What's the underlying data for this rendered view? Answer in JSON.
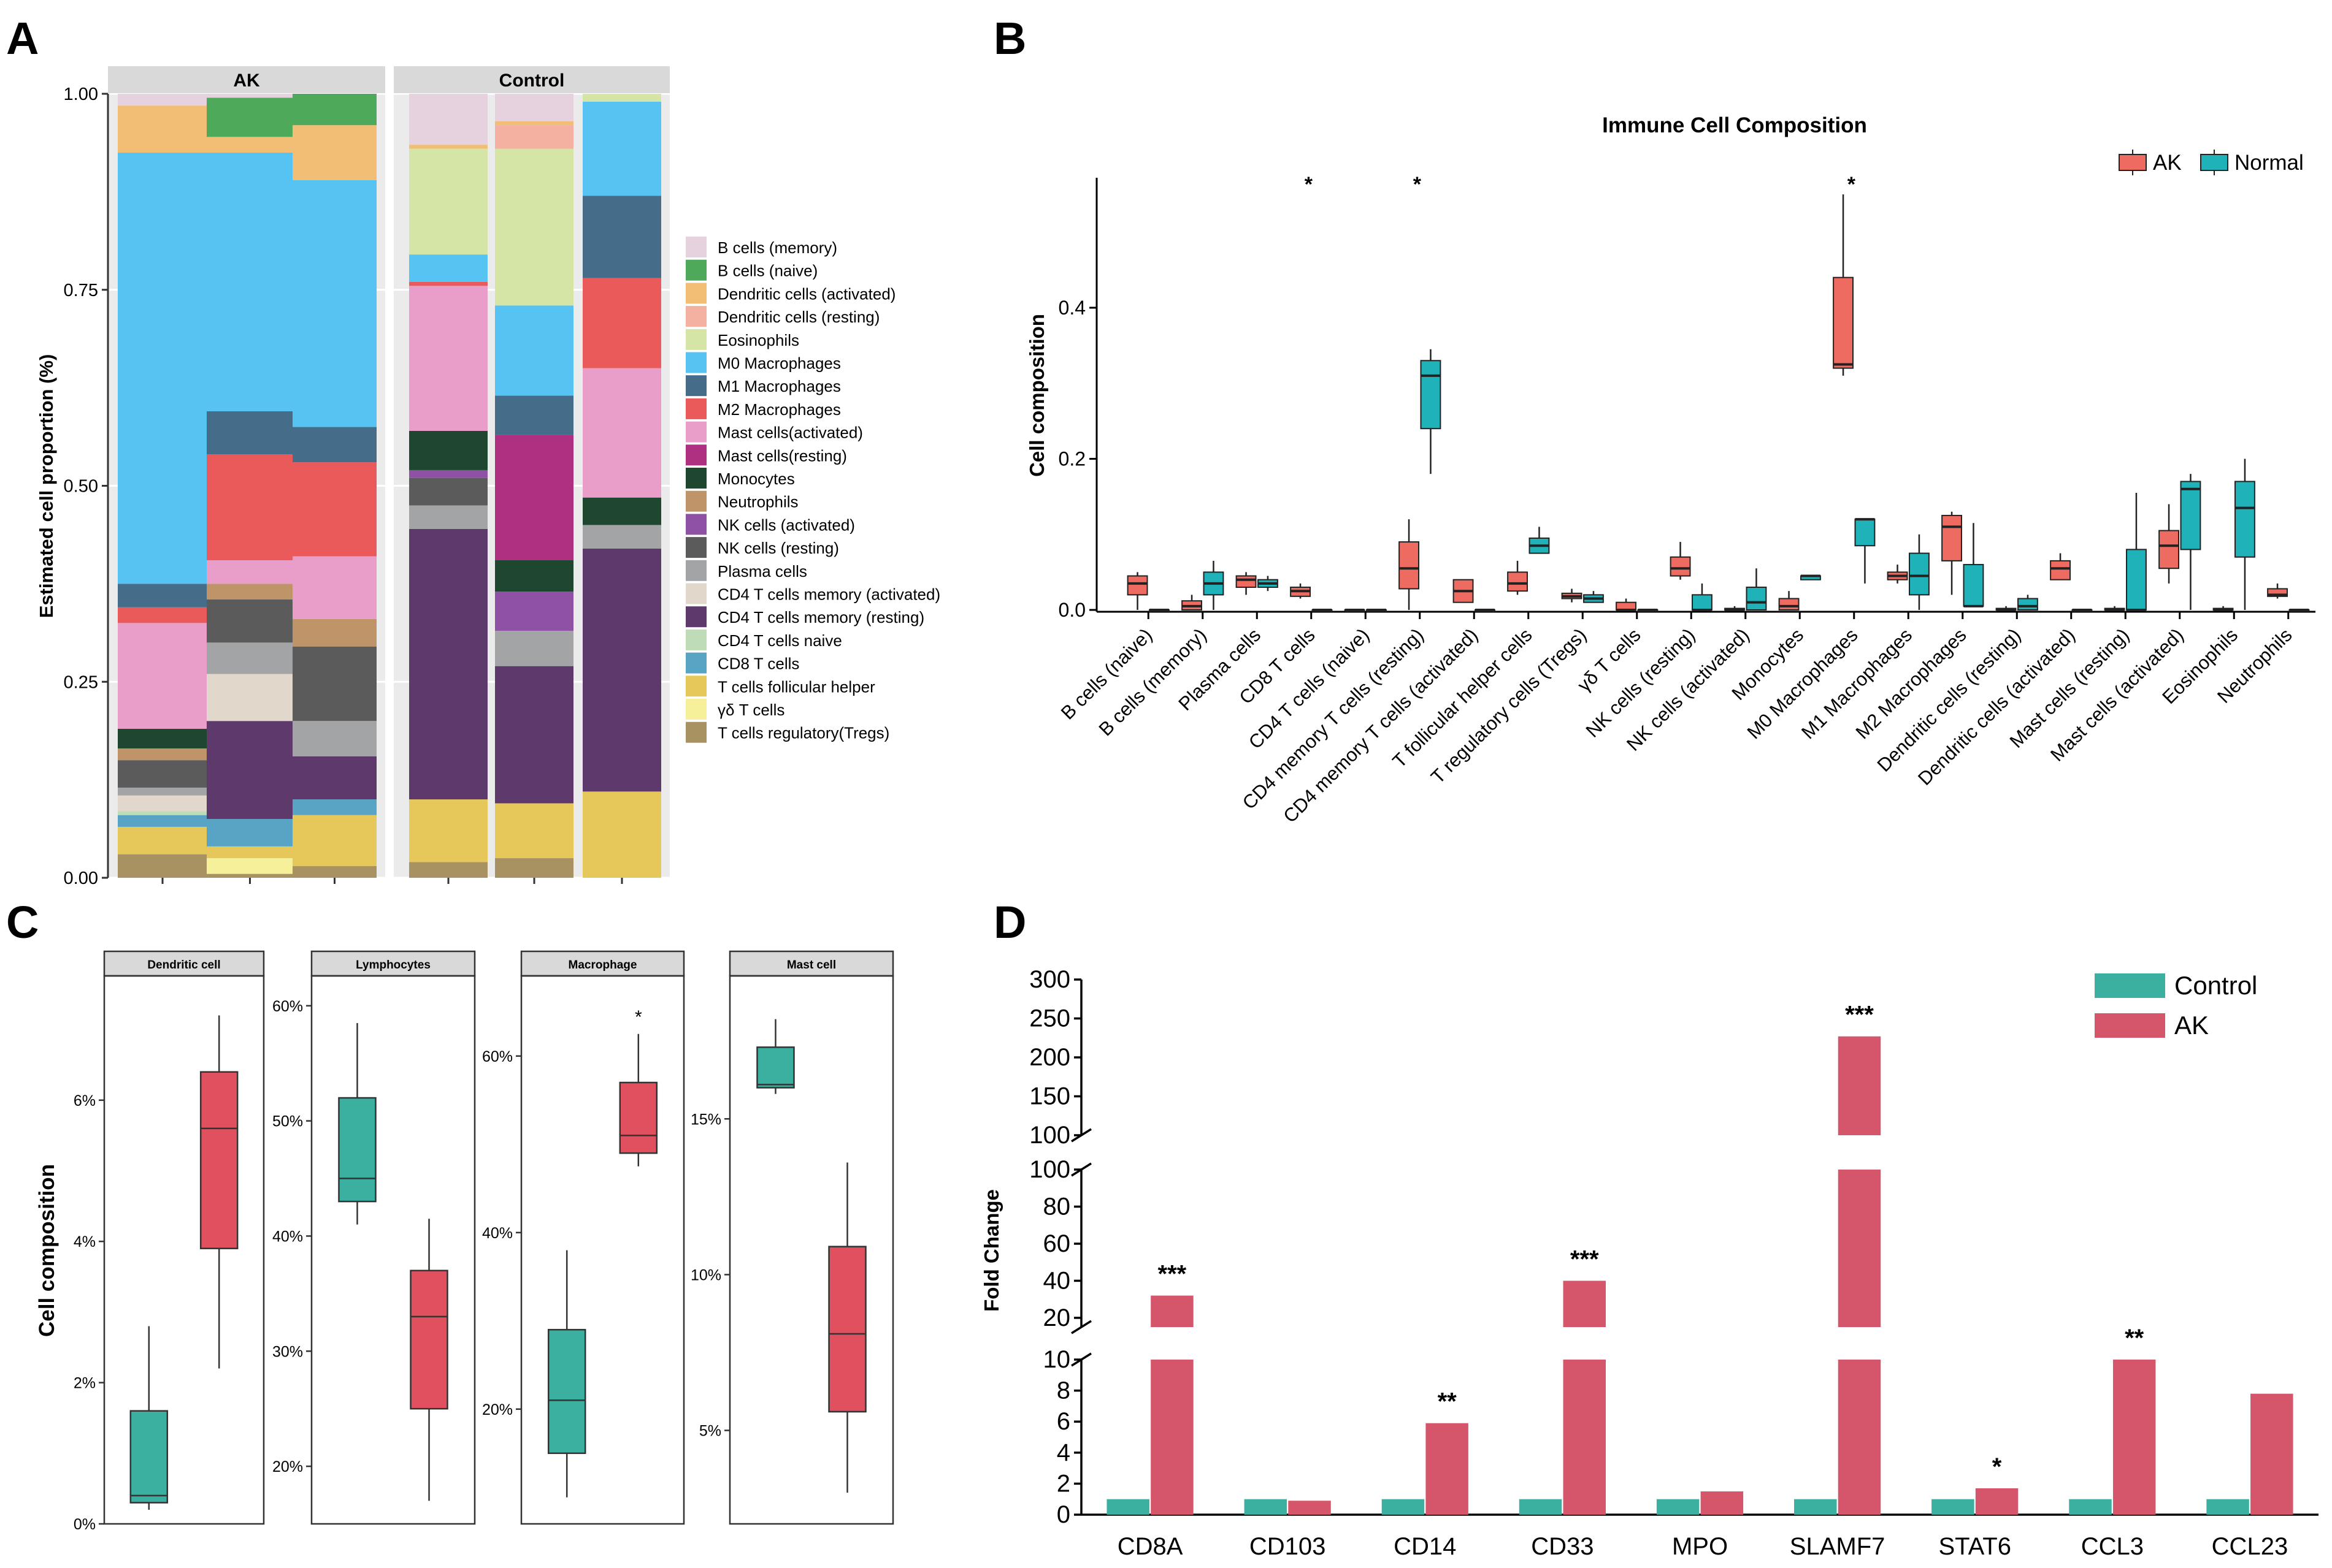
{
  "figure": {
    "panel_labels": [
      "A",
      "B",
      "C",
      "D"
    ]
  },
  "chart_data": [
    {
      "id": "A",
      "type": "stacked-bar",
      "facets": [
        "AK",
        "Control"
      ],
      "ylabel": "Estimated cell proportion (%)",
      "xlabel": "",
      "ylim": [
        0,
        1
      ],
      "yticks": [
        "0.00",
        "0.25",
        "0.50",
        "0.75",
        "1.00"
      ],
      "legend_position": "right",
      "legend": [
        {
          "name": "B cells (memory)",
          "color": "#E6D2DE"
        },
        {
          "name": "B cells (naive)",
          "color": "#4FA95B"
        },
        {
          "name": "Dendritic cells (activated)",
          "color": "#F2BE76"
        },
        {
          "name": "Dendritic cells (resting)",
          "color": "#F4B0A0"
        },
        {
          "name": "Eosinophils",
          "color": "#D5E5A5"
        },
        {
          "name": "M0 Macrophages",
          "color": "#57C3F2"
        },
        {
          "name": "M1 Macrophages",
          "color": "#456D8A"
        },
        {
          "name": "M2 Macrophages",
          "color": "#EB5A5A"
        },
        {
          "name": "Mast cells(activated)",
          "color": "#E89EC8"
        },
        {
          "name": "Mast cells(resting)",
          "color": "#AF2F80"
        },
        {
          "name": "Monocytes",
          "color": "#1F4730"
        },
        {
          "name": "Neutrophils",
          "color": "#BE9468"
        },
        {
          "name": "NK cells (activated)",
          "color": "#8E51A3"
        },
        {
          "name": "NK cells (resting)",
          "color": "#5B5B5B"
        },
        {
          "name": "Plasma cells",
          "color": "#A2A4A6"
        },
        {
          "name": "CD4 T cells memory (activated)",
          "color": "#E2D7CB"
        },
        {
          "name": "CD4 T cells memory (resting)",
          "color": "#5E3A6C"
        },
        {
          "name": "CD4 T cells naive",
          "color": "#BEDDB6"
        },
        {
          "name": "CD8 T cells",
          "color": "#57A4C4"
        },
        {
          "name": "T cells follicular helper",
          "color": "#E6C75A"
        },
        {
          "name": "γδ T cells",
          "color": "#F6F09A"
        },
        {
          "name": "T cells regulatory(Tregs)",
          "color": "#A89262"
        }
      ],
      "stack_order_bottom_to_top": [
        "T cells regulatory(Tregs)",
        "γδ T cells",
        "T cells follicular helper",
        "CD8 T cells",
        "CD4 T cells naive",
        "CD4 T cells memory (resting)",
        "CD4 T cells memory (activated)",
        "Plasma cells",
        "NK cells (resting)",
        "NK cells (activated)",
        "Neutrophils",
        "Monocytes",
        "Mast cells(resting)",
        "Mast cells(activated)",
        "M2 Macrophages",
        "M1 Macrophages",
        "M0 Macrophages",
        "Eosinophils",
        "Dendritic cells (resting)",
        "Dendritic cells (activated)",
        "B cells (naive)",
        "B cells (memory)"
      ],
      "samples": [
        {
          "facet": "AK",
          "values": {
            "T cells regulatory(Tregs)": 0.03,
            "T cells follicular helper": 0.035,
            "CD8 T cells": 0.015,
            "CD4 T cells naive": 0.005,
            "CD4 T cells memory (activated)": 0.02,
            "Plasma cells": 0.01,
            "NK cells (resting)": 0.035,
            "Neutrophils": 0.015,
            "Monocytes": 0.025,
            "Mast cells(activated)": 0.135,
            "M2 Macrophages": 0.02,
            "M1 Macrophages": 0.03,
            "M0 Macrophages": 0.55,
            "Dendritic cells (activated)": 0.06,
            "B cells (memory)": 0.015
          }
        },
        {
          "facet": "AK",
          "values": {
            "T cells regulatory(Tregs)": 0.005,
            "γδ T cells": 0.02,
            "T cells follicular helper": 0.015,
            "CD8 T cells": 0.035,
            "CD4 T cells memory (resting)": 0.125,
            "CD4 T cells memory (activated)": 0.06,
            "Plasma cells": 0.04,
            "NK cells (resting)": 0.055,
            "Neutrophils": 0.02,
            "Mast cells(activated)": 0.03,
            "M2 Macrophages": 0.135,
            "M1 Macrophages": 0.055,
            "M0 Macrophages": 0.33,
            "Dendritic cells (activated)": 0.02,
            "B cells (naive)": 0.05,
            "B cells (memory)": 0.005
          }
        },
        {
          "facet": "AK",
          "values": {
            "T cells regulatory(Tregs)": 0.015,
            "T cells follicular helper": 0.065,
            "CD8 T cells": 0.02,
            "CD4 T cells memory (resting)": 0.055,
            "Plasma cells": 0.045,
            "NK cells (resting)": 0.095,
            "Neutrophils": 0.035,
            "Mast cells(activated)": 0.08,
            "M2 Macrophages": 0.12,
            "M1 Macrophages": 0.045,
            "M0 Macrophages": 0.315,
            "Dendritic cells (activated)": 0.07,
            "B cells (naive)": 0.04
          }
        },
        {
          "facet": "Control",
          "values": {
            "T cells regulatory(Tregs)": 0.02,
            "T cells follicular helper": 0.08,
            "CD4 T cells memory (resting)": 0.345,
            "Plasma cells": 0.03,
            "NK cells (resting)": 0.035,
            "NK cells (activated)": 0.01,
            "Monocytes": 0.05,
            "Mast cells(activated)": 0.185,
            "M2 Macrophages": 0.005,
            "M0 Macrophages": 0.035,
            "Eosinophils": 0.135,
            "Dendritic cells (activated)": 0.005,
            "B cells (memory)": 0.065
          }
        },
        {
          "facet": "Control",
          "values": {
            "T cells regulatory(Tregs)": 0.025,
            "T cells follicular helper": 0.07,
            "CD4 T cells memory (resting)": 0.175,
            "Plasma cells": 0.045,
            "NK cells (activated)": 0.05,
            "Monocytes": 0.04,
            "Mast cells(resting)": 0.16,
            "M1 Macrophages": 0.05,
            "M0 Macrophages": 0.115,
            "Eosinophils": 0.2,
            "Dendritic cells (activated)": 0.005,
            "Dendritic cells (resting)": 0.03,
            "B cells (memory)": 0.035
          }
        },
        {
          "facet": "Control",
          "values": {
            "T cells regulatory(Tregs)": 0.0,
            "T cells follicular helper": 0.11,
            "CD4 T cells memory (resting)": 0.31,
            "Plasma cells": 0.03,
            "Monocytes": 0.035,
            "Mast cells(activated)": 0.165,
            "M2 Macrophages": 0.115,
            "M1 Macrophages": 0.105,
            "M0 Macrophages": 0.12,
            "Eosinophils": 0.01
          }
        }
      ]
    },
    {
      "id": "B",
      "type": "boxplot",
      "title": "Immune Cell Composition",
      "ylabel": "Cell composition",
      "ylim": [
        0,
        0.58
      ],
      "yticks": [
        "0.0",
        "0.2",
        "0.4"
      ],
      "ytick_values": [
        0,
        0.2,
        0.4
      ],
      "legend_position": "top-right",
      "series": [
        {
          "name": "AK",
          "color": "#EE6B61"
        },
        {
          "name": "Normal",
          "color": "#1FB2B8"
        }
      ],
      "categories": [
        "B cells (naive)",
        "B cells (memory)",
        "Plasma cells",
        "CD8 T cells",
        "CD4 T cells (naive)",
        "CD4 memory T cells (resting)",
        "CD4 memory T cells (activated)",
        "T follicular helper cells",
        "T regulatory cells (Tregs)",
        "γδ T cells",
        "NK cells (resting)",
        "NK cells (activated)",
        "Monocytes",
        "M0 Macrophages",
        "M1 Macrophages",
        "M2 Macrophages",
        "Dendritic cells (resting)",
        "Dendritic cells (activated)",
        "Mast cells (resting)",
        "Mast cells (activated)",
        "Eosinophils",
        "Neutrophils"
      ],
      "significance": [
        "",
        "",
        "",
        "*",
        "",
        "*",
        "",
        "",
        "",
        "",
        "",
        "",
        "",
        "*",
        "",
        "",
        "",
        "",
        "",
        "",
        "",
        ""
      ],
      "boxes": {
        "AK": [
          [
            0.0,
            0.02,
            0.035,
            0.045,
            0.05
          ],
          [
            0.0,
            0.0,
            0.005,
            0.012,
            0.02
          ],
          [
            0.02,
            0.03,
            0.04,
            0.045,
            0.05
          ],
          [
            0.015,
            0.018,
            0.025,
            0.03,
            0.035
          ],
          [
            0.0,
            0.0,
            0.0,
            0.0,
            0.0
          ],
          [
            0.0,
            0.028,
            0.055,
            0.09,
            0.12
          ],
          [
            0.01,
            0.01,
            0.025,
            0.04,
            0.04
          ],
          [
            0.02,
            0.025,
            0.035,
            0.05,
            0.065
          ],
          [
            0.01,
            0.015,
            0.018,
            0.022,
            0.028
          ],
          [
            0.0,
            0.0,
            0.0,
            0.01,
            0.015
          ],
          [
            0.04,
            0.045,
            0.055,
            0.07,
            0.09
          ],
          [
            0.0,
            0.0,
            0.0,
            0.002,
            0.005
          ],
          [
            0.0,
            0.0,
            0.005,
            0.015,
            0.025
          ],
          [
            0.31,
            0.32,
            0.325,
            0.44,
            0.55
          ],
          [
            0.035,
            0.04,
            0.045,
            0.05,
            0.06
          ],
          [
            0.02,
            0.065,
            0.11,
            0.125,
            0.13
          ],
          [
            0.0,
            0.0,
            0.0,
            0.002,
            0.005
          ],
          [
            0.04,
            0.04,
            0.055,
            0.065,
            0.075
          ],
          [
            0.0,
            0.0,
            0.0,
            0.002,
            0.005
          ],
          [
            0.035,
            0.055,
            0.085,
            0.105,
            0.14
          ],
          [
            0.0,
            0.0,
            0.0,
            0.002,
            0.005
          ],
          [
            0.015,
            0.018,
            0.02,
            0.028,
            0.035
          ]
        ],
        "Normal": [
          [
            0.0,
            0.0,
            0.0,
            0.0,
            0.0
          ],
          [
            0.0,
            0.02,
            0.035,
            0.05,
            0.065
          ],
          [
            0.025,
            0.03,
            0.035,
            0.04,
            0.045
          ],
          [
            0.0,
            0.0,
            0.0,
            0.0,
            0.0
          ],
          [
            0.0,
            0.0,
            0.0,
            0.0,
            0.0
          ],
          [
            0.18,
            0.24,
            0.31,
            0.33,
            0.345
          ],
          [
            0.0,
            0.0,
            0.0,
            0.0,
            0.0
          ],
          [
            0.075,
            0.075,
            0.085,
            0.095,
            0.11
          ],
          [
            0.01,
            0.01,
            0.015,
            0.02,
            0.025
          ],
          [
            0.0,
            0.0,
            0.0,
            0.0,
            0.0
          ],
          [
            0.0,
            0.0,
            0.0,
            0.02,
            0.035
          ],
          [
            0.0,
            0.0,
            0.01,
            0.03,
            0.055
          ],
          [
            0.04,
            0.04,
            0.045,
            0.045,
            0.045
          ],
          [
            0.035,
            0.085,
            0.12,
            0.12,
            0.12
          ],
          [
            0.0,
            0.02,
            0.045,
            0.075,
            0.1
          ],
          [
            0.005,
            0.005,
            0.005,
            0.06,
            0.115
          ],
          [
            0.0,
            0.0,
            0.005,
            0.015,
            0.02
          ],
          [
            0.0,
            0.0,
            0.0,
            0.0,
            0.0
          ],
          [
            0.0,
            0.0,
            0.0,
            0.08,
            0.155
          ],
          [
            0.0,
            0.08,
            0.16,
            0.17,
            0.18
          ],
          [
            0.0,
            0.07,
            0.135,
            0.17,
            0.2
          ],
          [
            0.0,
            0.0,
            0.0,
            0.0,
            0.0
          ]
        ]
      }
    },
    {
      "id": "C",
      "type": "boxplot",
      "ylabel": "Cell composition",
      "series": [
        {
          "name": "Control",
          "color": "#3BAFA0"
        },
        {
          "name": "AK",
          "color": "#E0505F"
        }
      ],
      "facets": [
        {
          "name": "Dendritic cell",
          "ylim": [
            0.0,
            0.075
          ],
          "ytick_values": [
            0,
            0.02,
            0.04,
            0.06
          ],
          "yticks": [
            "0%",
            "2%",
            "4%",
            "6%"
          ],
          "significance": "",
          "boxes": {
            "Control": [
              0.002,
              0.003,
              0.004,
              0.016,
              0.028
            ],
            "AK": [
              0.022,
              0.039,
              0.056,
              0.064,
              0.072
            ]
          }
        },
        {
          "name": "Lymphocytes",
          "ylim": [
            0.15,
            0.61
          ],
          "ytick_values": [
            0.2,
            0.3,
            0.4,
            0.5,
            0.6
          ],
          "yticks": [
            "20%",
            "30%",
            "40%",
            "50%",
            "60%"
          ],
          "significance": "",
          "boxes": {
            "Control": [
              0.41,
              0.43,
              0.45,
              0.52,
              0.585
            ],
            "AK": [
              0.17,
              0.25,
              0.33,
              0.37,
              0.415
            ]
          }
        },
        {
          "name": "Macrophage",
          "ylim": [
            0.07,
            0.67
          ],
          "ytick_values": [
            0.2,
            0.4,
            0.6
          ],
          "yticks": [
            "20%",
            "40%",
            "60%"
          ],
          "significance": "*",
          "boxes": {
            "Control": [
              0.1,
              0.15,
              0.21,
              0.29,
              0.38
            ],
            "AK": [
              0.475,
              0.49,
              0.51,
              0.57,
              0.625
            ]
          }
        },
        {
          "name": "Mast cell",
          "ylim": [
            0.02,
            0.19
          ],
          "ytick_values": [
            0.05,
            0.1,
            0.15
          ],
          "yticks": [
            "5%",
            "10%",
            "15%"
          ],
          "significance": "",
          "boxes": {
            "Control": [
              0.158,
              0.16,
              0.161,
              0.173,
              0.182
            ],
            "AK": [
              0.03,
              0.056,
              0.081,
              0.109,
              0.136
            ]
          }
        }
      ]
    },
    {
      "id": "D",
      "type": "bar",
      "ylabel": "Fold Change",
      "y_axis_break": true,
      "y_segments": [
        {
          "range": [
            0,
            10
          ],
          "yticks": [
            "0",
            "2",
            "4",
            "6",
            "8",
            "10"
          ]
        },
        {
          "range": [
            15,
            100
          ],
          "yticks": [
            "20",
            "40",
            "60",
            "80",
            "100"
          ]
        },
        {
          "range": [
            100,
            300
          ],
          "yticks": [
            "100",
            "150",
            "200",
            "250",
            "300"
          ]
        }
      ],
      "legend_position": "top-right",
      "categories": [
        "CD8A",
        "CD103",
        "CD14",
        "CD33",
        "MPO",
        "SLAMF7",
        "STAT6",
        "CCL3",
        "CCL23"
      ],
      "series": [
        {
          "name": "Control",
          "color": "#3BAFA0",
          "values": [
            1,
            1,
            1,
            1,
            1,
            1,
            1,
            1,
            1
          ]
        },
        {
          "name": "AK",
          "color": "#D5566A",
          "values": [
            32,
            0.9,
            5.9,
            40,
            1.5,
            227,
            1.7,
            10,
            7.8
          ]
        }
      ],
      "significance": [
        "***",
        "",
        "**",
        "***",
        "",
        "***",
        "*",
        "**",
        ""
      ]
    }
  ]
}
